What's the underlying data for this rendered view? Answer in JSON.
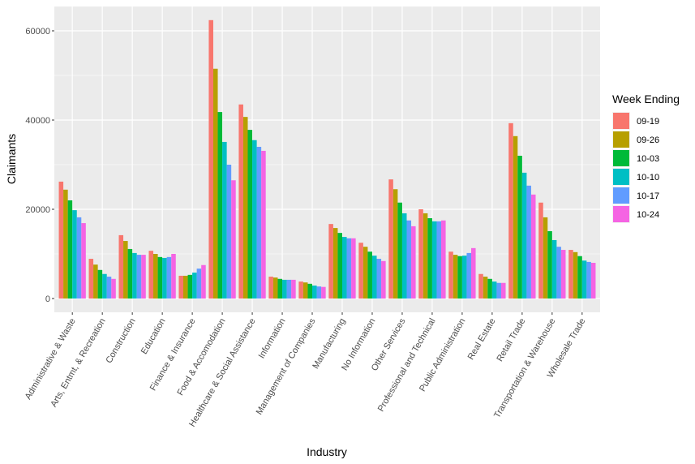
{
  "chart_data": {
    "type": "bar",
    "title": "",
    "xlabel": "Industry",
    "ylabel": "Claimants",
    "ylim": [
      0,
      65000
    ],
    "yticks": [
      0,
      20000,
      40000,
      60000
    ],
    "grid": true,
    "legend": {
      "title": "Week Ending",
      "position": "right"
    },
    "categories": [
      "Administrative & Waste",
      "Arts, Entmt, & Recreation",
      "Construction",
      "Education",
      "Finance & Insurance",
      "Food & Accomodation",
      "Healthcare & Social Assistance",
      "Information",
      "Management of Companies",
      "Manufacturing",
      "No Information",
      "Other Services",
      "Professional and Technical",
      "Public Administration",
      "Real Estate",
      "Retail Trade",
      "Transportation & Warehouse",
      "Wholesale Trade"
    ],
    "series": [
      {
        "name": "09-19",
        "color": "#F8766D",
        "values": [
          26200,
          8900,
          14200,
          10700,
          5100,
          62400,
          43500,
          4900,
          3800,
          16700,
          12500,
          26700,
          20000,
          10500,
          5500,
          39300,
          21500,
          10900
        ]
      },
      {
        "name": "09-26",
        "color": "#B79F00",
        "values": [
          24400,
          7600,
          12900,
          10000,
          5100,
          51500,
          40700,
          4700,
          3600,
          15800,
          11600,
          24500,
          19100,
          9800,
          4900,
          36400,
          18200,
          10400
        ]
      },
      {
        "name": "10-03",
        "color": "#00BA38",
        "values": [
          22000,
          6400,
          11100,
          9300,
          5300,
          41800,
          37800,
          4400,
          3300,
          14700,
          10500,
          21500,
          18000,
          9500,
          4400,
          32000,
          15100,
          9500
        ]
      },
      {
        "name": "10-10",
        "color": "#00BFC4",
        "values": [
          19800,
          5500,
          10200,
          9100,
          5800,
          35100,
          35500,
          4200,
          2900,
          13800,
          9600,
          19100,
          17300,
          9600,
          3800,
          28200,
          13100,
          8500
        ]
      },
      {
        "name": "10-17",
        "color": "#619CFF",
        "values": [
          18200,
          4900,
          9800,
          9300,
          6700,
          30000,
          34000,
          4200,
          2700,
          13500,
          8900,
          17500,
          17300,
          10200,
          3500,
          25300,
          11600,
          8200
        ]
      },
      {
        "name": "10-24",
        "color": "#F564E3",
        "values": [
          16900,
          4400,
          9800,
          10000,
          7500,
          26500,
          33100,
          4200,
          2600,
          13500,
          8400,
          16200,
          17500,
          11300,
          3500,
          23300,
          10900,
          8000
        ]
      }
    ]
  }
}
